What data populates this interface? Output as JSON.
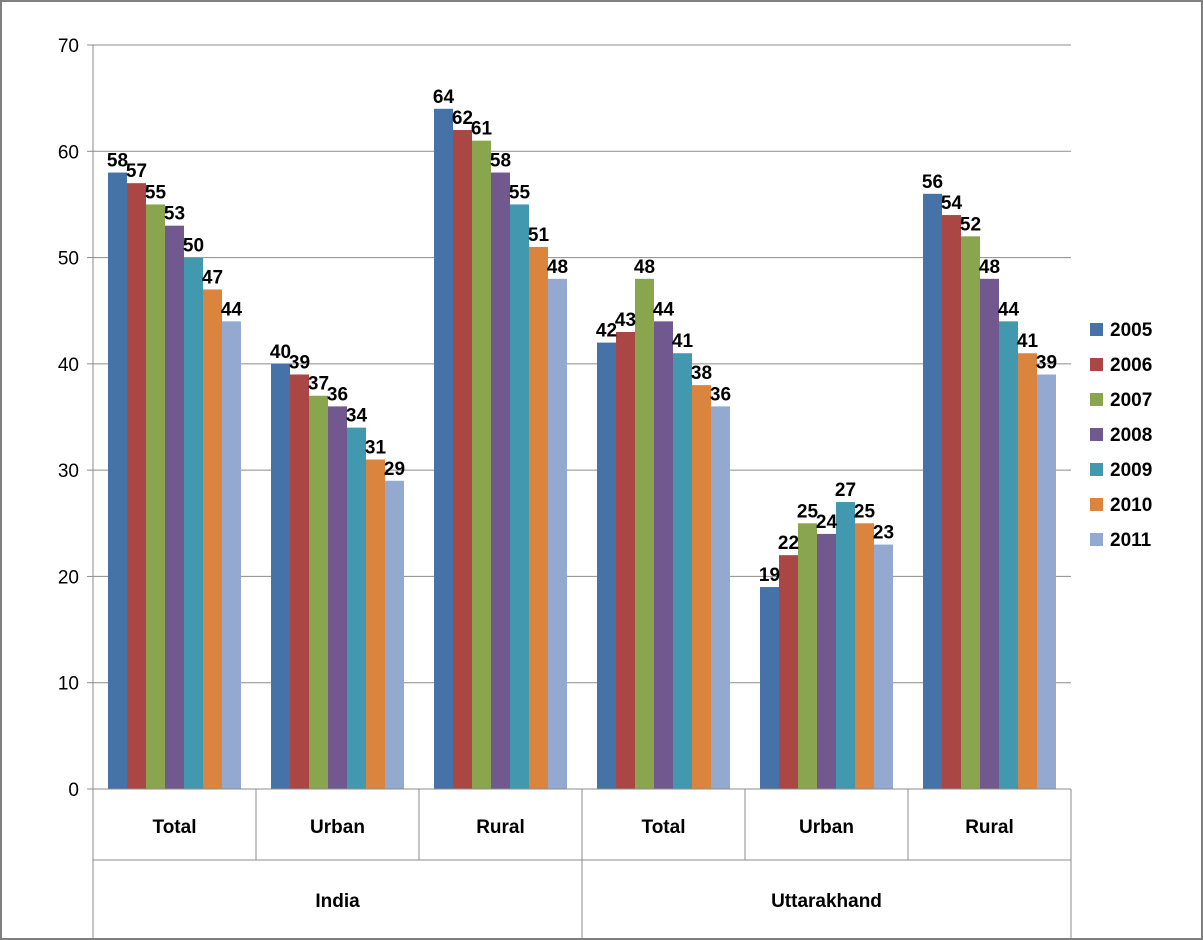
{
  "chart_data": {
    "type": "bar",
    "title": "",
    "xlabel": "",
    "ylabel": "",
    "ylim": [
      0,
      70
    ],
    "yticks": [
      0,
      10,
      20,
      30,
      40,
      50,
      60,
      70
    ],
    "grid": true,
    "legend_position": "right",
    "groups": [
      {
        "label": "India",
        "categories": [
          "Total",
          "Urban",
          "Rural"
        ]
      },
      {
        "label": "Uttarakhand",
        "categories": [
          "Total",
          "Urban",
          "Rural"
        ]
      }
    ],
    "categories": [
      "Total",
      "Urban",
      "Rural",
      "Total",
      "Urban",
      "Rural"
    ],
    "series": [
      {
        "name": "2005",
        "color": "#4572A7",
        "values": [
          58,
          40,
          64,
          42,
          19,
          56
        ]
      },
      {
        "name": "2006",
        "color": "#AA4643",
        "values": [
          57,
          39,
          62,
          43,
          22,
          54
        ]
      },
      {
        "name": "2007",
        "color": "#89A54E",
        "values": [
          55,
          37,
          61,
          48,
          25,
          52
        ]
      },
      {
        "name": "2008",
        "color": "#71588F",
        "values": [
          53,
          36,
          58,
          44,
          24,
          48
        ]
      },
      {
        "name": "2009",
        "color": "#4198AF",
        "values": [
          50,
          34,
          55,
          41,
          27,
          44
        ]
      },
      {
        "name": "2010",
        "color": "#DB843D",
        "values": [
          47,
          31,
          51,
          38,
          25,
          41
        ]
      },
      {
        "name": "2011",
        "color": "#93A9CF",
        "values": [
          44,
          29,
          48,
          36,
          23,
          39
        ]
      }
    ]
  }
}
